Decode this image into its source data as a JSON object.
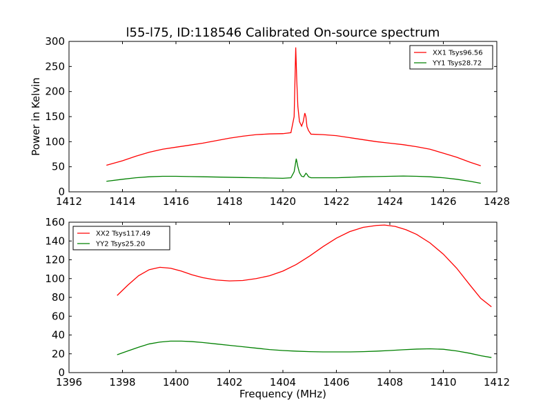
{
  "title": "l55-l75, ID:118546 Calibrated On-source spectrum",
  "colors": {
    "xx": "#ff0000",
    "yy": "#008000"
  },
  "chart_data": [
    {
      "type": "line",
      "ylabel": "Power in Kelvin",
      "xlabel": "",
      "xlim": [
        1412,
        1428
      ],
      "ylim": [
        0,
        300
      ],
      "xticks": [
        1412,
        1414,
        1416,
        1418,
        1420,
        1422,
        1424,
        1426,
        1428
      ],
      "yticks": [
        0,
        50,
        100,
        150,
        200,
        250,
        300
      ],
      "legend_position": "top-right",
      "series": [
        {
          "name": "XX1 Tsys96.56",
          "color": "#ff0000",
          "x": [
            1413.4,
            1414.0,
            1414.5,
            1415.0,
            1415.5,
            1416.0,
            1416.5,
            1417.0,
            1417.5,
            1418.0,
            1418.5,
            1419.0,
            1419.5,
            1420.0,
            1420.3,
            1420.42,
            1420.48,
            1420.52,
            1420.56,
            1420.62,
            1420.7,
            1420.76,
            1420.82,
            1420.86,
            1420.9,
            1420.96,
            1421.05,
            1421.5,
            1422.0,
            1422.5,
            1423.0,
            1423.5,
            1424.0,
            1424.5,
            1425.0,
            1425.5,
            1426.0,
            1426.5,
            1427.0,
            1427.4
          ],
          "values": [
            53,
            62,
            71,
            79,
            85,
            89,
            93,
            97,
            102,
            107,
            111,
            114,
            115.5,
            116,
            118,
            150,
            288,
            220,
            170,
            140,
            131,
            140,
            157,
            150,
            130,
            122,
            115,
            114,
            112,
            108,
            104,
            100,
            97,
            94,
            90,
            85,
            77,
            69,
            59,
            52
          ]
        },
        {
          "name": "YY1 Tsys28.72",
          "color": "#008000",
          "x": [
            1413.4,
            1414.0,
            1414.5,
            1415.0,
            1415.5,
            1416.0,
            1416.5,
            1417.0,
            1417.5,
            1418.0,
            1418.5,
            1419.0,
            1419.5,
            1420.0,
            1420.3,
            1420.42,
            1420.5,
            1420.56,
            1420.62,
            1420.7,
            1420.78,
            1420.86,
            1420.9,
            1420.96,
            1421.05,
            1421.5,
            1422.0,
            1422.5,
            1423.0,
            1423.5,
            1424.0,
            1424.5,
            1425.0,
            1425.5,
            1426.0,
            1426.5,
            1427.0,
            1427.4
          ],
          "values": [
            21,
            25,
            28,
            30,
            31,
            31,
            30.5,
            30,
            29.5,
            29,
            28.5,
            28,
            27.5,
            27,
            28,
            40,
            66,
            50,
            38,
            31,
            30,
            37,
            35,
            30,
            28,
            28,
            28,
            29,
            30,
            30.5,
            31,
            31.5,
            31,
            30,
            28,
            25,
            21,
            17
          ]
        }
      ]
    },
    {
      "type": "line",
      "ylabel": "",
      "xlabel": "Frequency (MHz)",
      "xlim": [
        1396,
        1412
      ],
      "ylim": [
        0,
        160
      ],
      "xticks": [
        1396,
        1398,
        1400,
        1402,
        1404,
        1406,
        1408,
        1410,
        1412
      ],
      "yticks": [
        0,
        20,
        40,
        60,
        80,
        100,
        120,
        140,
        160
      ],
      "legend_position": "top-left",
      "series": [
        {
          "name": "XX2 Tsys117.49",
          "color": "#ff0000",
          "x": [
            1397.8,
            1398.2,
            1398.6,
            1399.0,
            1399.4,
            1399.8,
            1400.2,
            1400.6,
            1401.0,
            1401.5,
            1402.0,
            1402.5,
            1403.0,
            1403.5,
            1404.0,
            1404.5,
            1405.0,
            1405.5,
            1406.0,
            1406.5,
            1407.0,
            1407.5,
            1407.8,
            1408.2,
            1408.6,
            1409.0,
            1409.5,
            1410.0,
            1410.5,
            1411.0,
            1411.4,
            1411.8
          ],
          "values": [
            82,
            93,
            103,
            109.5,
            112,
            111,
            108,
            104,
            101,
            98.5,
            97.5,
            98,
            100,
            103,
            108,
            115,
            124,
            134,
            143,
            150,
            154.5,
            156.5,
            157,
            155.5,
            152,
            147,
            138,
            126,
            111,
            93,
            79,
            70
          ]
        },
        {
          "name": "YY2 Tsys25.20",
          "color": "#008000",
          "x": [
            1397.8,
            1398.2,
            1398.6,
            1399.0,
            1399.4,
            1399.8,
            1400.2,
            1400.6,
            1401.0,
            1401.5,
            1402.0,
            1402.5,
            1403.0,
            1403.5,
            1404.0,
            1404.5,
            1405.0,
            1405.5,
            1406.0,
            1406.5,
            1407.0,
            1407.5,
            1408.0,
            1408.5,
            1409.0,
            1409.5,
            1410.0,
            1410.5,
            1411.0,
            1411.4,
            1411.8
          ],
          "values": [
            19,
            23,
            27,
            30.5,
            32.5,
            33.5,
            33.5,
            33,
            32,
            30.5,
            29,
            27.5,
            26,
            24.5,
            23.5,
            22.8,
            22.3,
            22,
            22,
            22,
            22.3,
            22.8,
            23.5,
            24.3,
            25,
            25.3,
            24.8,
            23,
            20.5,
            18,
            16
          ]
        }
      ]
    }
  ]
}
